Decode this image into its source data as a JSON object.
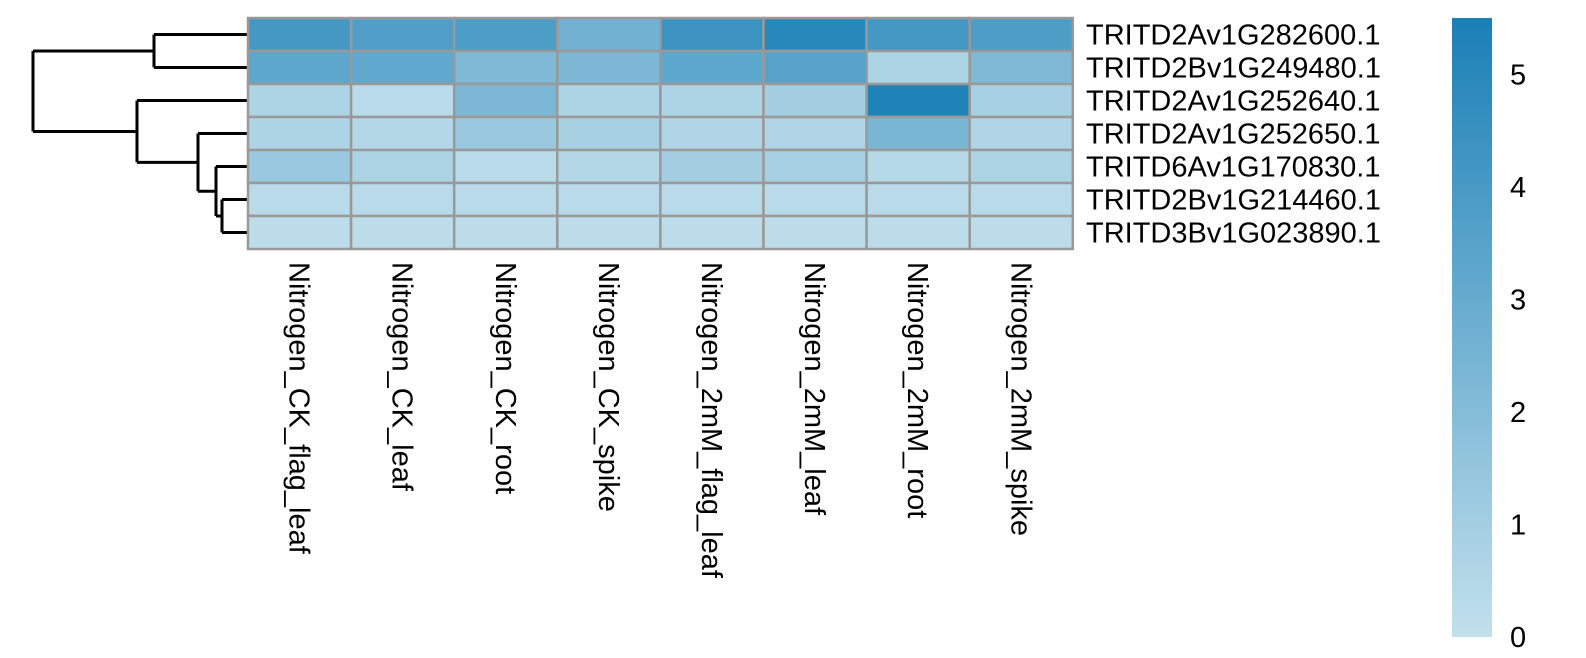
{
  "chart_data": {
    "type": "heatmap",
    "title": "",
    "columns": [
      "Nitrogen_CK_flag_leaf",
      "Nitrogen_CK_leaf",
      "Nitrogen_CK_root",
      "Nitrogen_CK_spike",
      "Nitrogen_2mM_flag_leaf",
      "Nitrogen_2mM_leaf",
      "Nitrogen_2mM_root",
      "Nitrogen_2mM_spike"
    ],
    "rows": [
      "TRITD2Av1G282600.1",
      "TRITD2Bv1G249480.1",
      "TRITD2Av1G252640.1",
      "TRITD2Av1G252650.1",
      "TRITD6Av1G170830.1",
      "TRITD2Bv1G214460.1",
      "TRITD3Bv1G023890.1"
    ],
    "values": [
      [
        4.1,
        3.7,
        3.8,
        2.6,
        4.4,
        5.0,
        4.1,
        3.8
      ],
      [
        3.3,
        3.2,
        2.2,
        2.3,
        3.3,
        3.5,
        0.7,
        2.2
      ],
      [
        0.7,
        0.3,
        2.3,
        0.7,
        0.7,
        1.0,
        5.3,
        0.9
      ],
      [
        0.7,
        0.5,
        1.3,
        0.9,
        0.6,
        0.6,
        2.4,
        0.6
      ],
      [
        1.3,
        0.7,
        0.3,
        0.5,
        1.0,
        0.9,
        0.4,
        0.7
      ],
      [
        0.3,
        0.3,
        0.3,
        0.3,
        0.3,
        0.3,
        0.3,
        0.3
      ],
      [
        0.2,
        0.2,
        0.2,
        0.2,
        0.2,
        0.2,
        0.2,
        0.2
      ]
    ],
    "colorbar": {
      "min": 0,
      "max": 5.5,
      "ticks": [
        "0",
        "1",
        "2",
        "3",
        "4",
        "5"
      ],
      "low_color": "#c2e0ec",
      "high_color": "#1a7fb6"
    },
    "cell_border_color": "#999999",
    "grid": true,
    "legend": "right",
    "row_dendrogram": true
  }
}
